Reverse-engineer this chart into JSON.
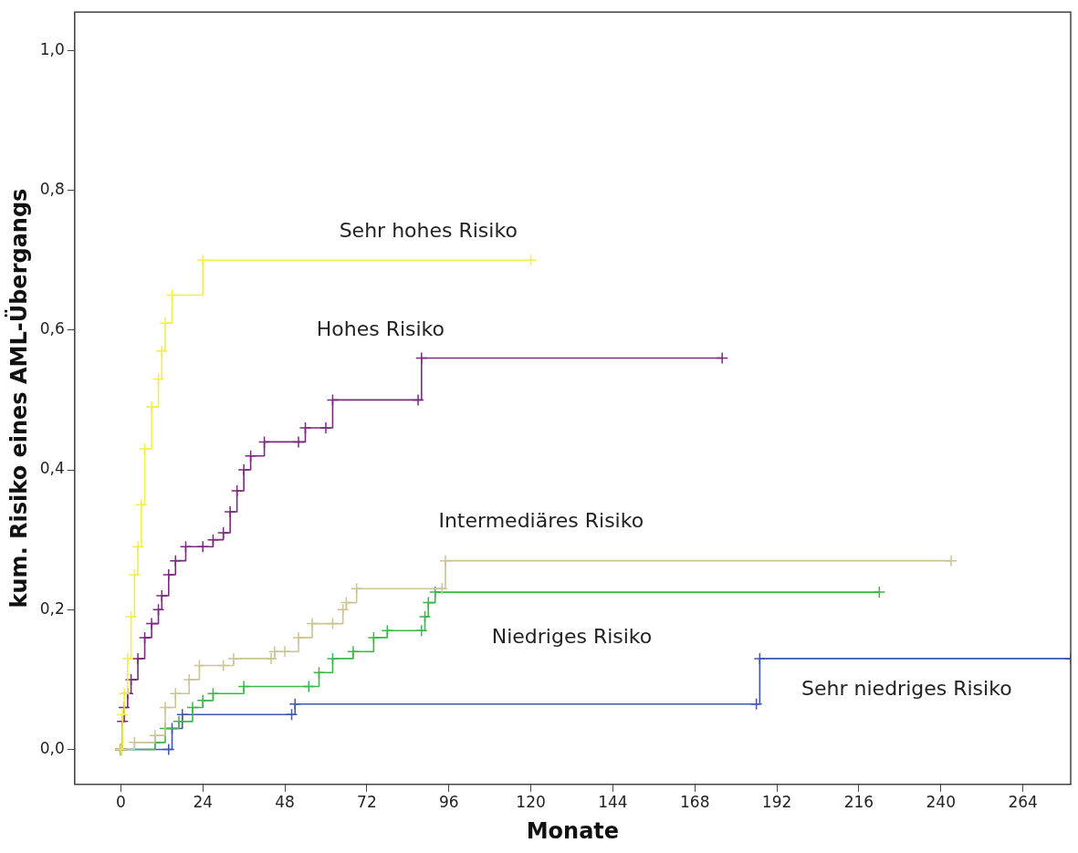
{
  "chart_data": {
    "type": "step",
    "xlabel": "Monate",
    "ylabel": "kum. Risiko eines AML-Übergangs",
    "xlim": [
      -13.5,
      278
    ],
    "xticks": [
      0,
      24,
      48,
      72,
      96,
      120,
      144,
      168,
      192,
      216,
      240,
      264
    ],
    "ylim": [
      -0.05,
      1.055
    ],
    "yticks": [
      {
        "value": 0,
        "label": "0,0"
      },
      {
        "value": 0.2,
        "label": "0,2"
      },
      {
        "value": 0.4,
        "label": "0,4"
      },
      {
        "value": 0.6,
        "label": "0,6"
      },
      {
        "value": 0.8,
        "label": "0,8"
      },
      {
        "value": 1,
        "label": "1,0"
      }
    ],
    "grid": false,
    "legend": false,
    "marker": "cross",
    "line_style": "solid",
    "series": [
      {
        "name": "Sehr hohes Risiko",
        "color": "#f2ee4c",
        "x": [
          0,
          0.5,
          1,
          2,
          3,
          4,
          5,
          6,
          7,
          9,
          11,
          12,
          13,
          15,
          24,
          120
        ],
        "values": [
          0,
          0.05,
          0.08,
          0.13,
          0.19,
          0.25,
          0.29,
          0.35,
          0.43,
          0.49,
          0.53,
          0.57,
          0.61,
          0.65,
          0.7,
          0.7
        ]
      },
      {
        "name": "Hohes Risiko",
        "color": "#7b2a7f",
        "x": [
          0,
          0.5,
          1,
          2,
          3,
          5,
          7,
          9,
          11,
          12,
          14,
          16,
          19,
          24,
          27,
          30,
          32,
          34,
          36,
          38,
          42,
          52,
          54,
          60,
          62,
          87,
          88,
          176
        ],
        "values": [
          0,
          0.04,
          0.06,
          0.08,
          0.1,
          0.13,
          0.16,
          0.18,
          0.2,
          0.22,
          0.25,
          0.27,
          0.29,
          0.29,
          0.3,
          0.31,
          0.34,
          0.37,
          0.4,
          0.42,
          0.44,
          0.44,
          0.46,
          0.46,
          0.5,
          0.5,
          0.56,
          0.56
        ]
      },
      {
        "name": "Intermediäres Risiko",
        "color": "#cdc494",
        "x": [
          0,
          4,
          10,
          13,
          16,
          20,
          23,
          30,
          33,
          44,
          45,
          48,
          52,
          56,
          62,
          65,
          66,
          69,
          94,
          95,
          243
        ],
        "values": [
          0,
          0.01,
          0.02,
          0.06,
          0.08,
          0.1,
          0.12,
          0.12,
          0.13,
          0.13,
          0.14,
          0.14,
          0.16,
          0.18,
          0.18,
          0.2,
          0.21,
          0.23,
          0.23,
          0.27,
          0.27
        ]
      },
      {
        "name": "Niedriges Risiko",
        "color": "#3cb84a",
        "x": [
          0,
          10,
          13,
          17,
          21,
          24,
          27,
          36,
          55,
          58,
          62,
          68,
          74,
          78,
          88,
          89,
          90,
          92,
          222
        ],
        "values": [
          0,
          0.01,
          0.03,
          0.04,
          0.06,
          0.07,
          0.08,
          0.09,
          0.09,
          0.11,
          0.13,
          0.14,
          0.16,
          0.17,
          0.17,
          0.19,
          0.21,
          0.225,
          0.225
        ]
      },
      {
        "name": "Sehr niedriges Risiko",
        "color": "#3f55b0",
        "x": [
          0,
          14,
          15,
          18,
          50,
          51,
          186,
          187,
          278
        ],
        "values": [
          0,
          0,
          0.03,
          0.05,
          0.05,
          0.065,
          0.065,
          0.13,
          0.13
        ]
      }
    ]
  }
}
